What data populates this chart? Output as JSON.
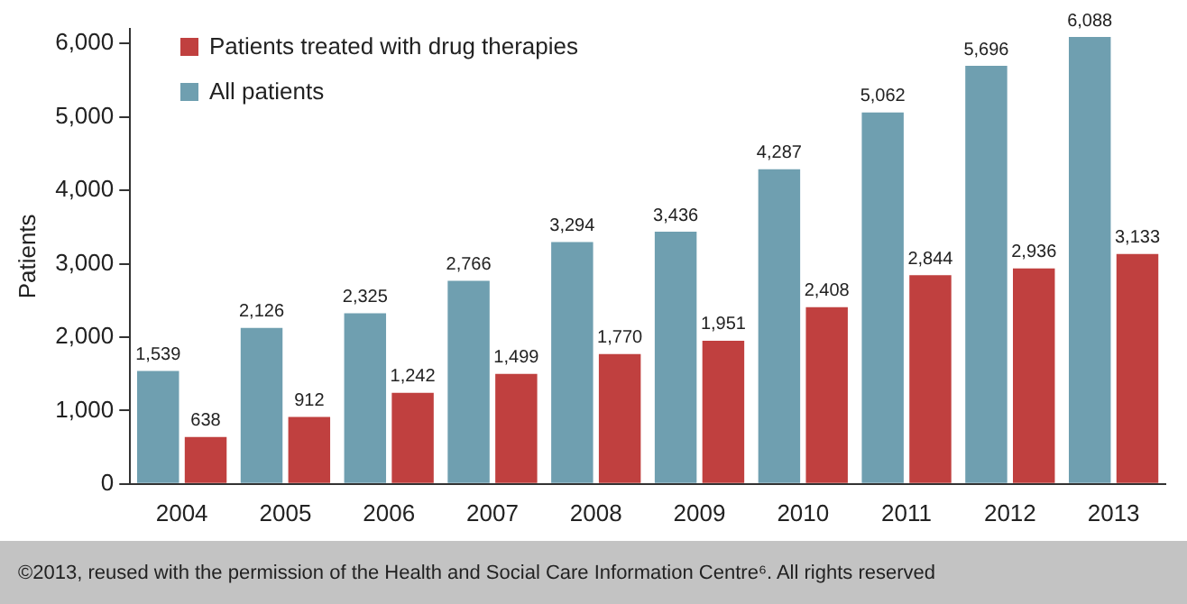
{
  "chart_data": {
    "type": "bar",
    "ylabel": "Patients",
    "categories": [
      "2004",
      "2005",
      "2006",
      "2007",
      "2008",
      "2009",
      "2010",
      "2011",
      "2012",
      "2013"
    ],
    "series": [
      {
        "name": "All patients",
        "color": "#6f9fb0",
        "values": [
          1539,
          2126,
          2325,
          2766,
          3294,
          3436,
          4287,
          5062,
          5696,
          6088
        ],
        "value_labels": [
          "1,539",
          "2,126",
          "2,325",
          "2,766",
          "3,294",
          "3,436",
          "4,287",
          "5,062",
          "5,696",
          "6,088"
        ]
      },
      {
        "name": "Patients treated with drug therapies",
        "color": "#c0403f",
        "values": [
          638,
          912,
          1242,
          1499,
          1770,
          1951,
          2408,
          2844,
          2936,
          3133
        ],
        "value_labels": [
          "638",
          "912",
          "1,242",
          "1,499",
          "1,770",
          "1,951",
          "2,408",
          "2,844",
          "2,936",
          "3,133"
        ]
      }
    ],
    "ylim": [
      0,
      6200
    ],
    "yticks": [
      {
        "value": 0,
        "label": "0"
      },
      {
        "value": 1000,
        "label": "1,000"
      },
      {
        "value": 2000,
        "label": "2,000"
      },
      {
        "value": 3000,
        "label": "3,000"
      },
      {
        "value": 4000,
        "label": "4,000"
      },
      {
        "value": 5000,
        "label": "5,000"
      },
      {
        "value": 6000,
        "label": "6,000"
      }
    ],
    "grid": false,
    "legend": "top left",
    "annotations": [
      "©2013, reused with the permission of the Health and Social Care Information Centre⁶. All rights reserved"
    ]
  }
}
